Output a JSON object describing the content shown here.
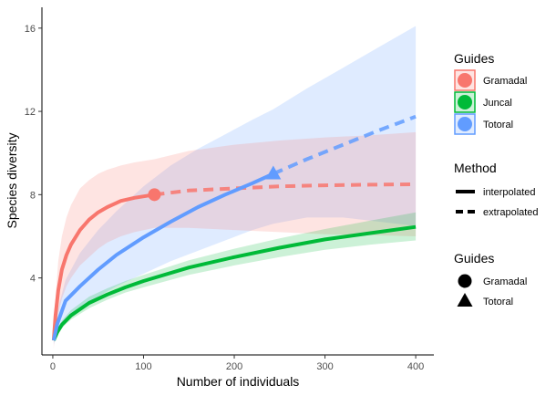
{
  "chart_data": {
    "type": "line",
    "xlabel": "Number of individuals",
    "ylabel": "Species diversity",
    "xlim": [
      -12,
      420
    ],
    "ylim": [
      0.3,
      17
    ],
    "x_ticks": [
      0,
      100,
      200,
      300,
      400
    ],
    "y_ticks": [
      4,
      8,
      12,
      16
    ],
    "grid": false,
    "legend_placement": "right",
    "series": [
      {
        "name": "Gramadal",
        "color": "#F8766D",
        "observed_point": [
          112,
          8.0
        ],
        "interpolated": {
          "x": [
            1,
            3,
            6,
            10,
            15,
            20,
            30,
            40,
            50,
            60,
            75,
            90,
            112
          ],
          "y": [
            1.0,
            2.2,
            3.4,
            4.4,
            5.1,
            5.6,
            6.3,
            6.8,
            7.15,
            7.4,
            7.7,
            7.85,
            8.0
          ]
        },
        "extrapolated": {
          "x": [
            112,
            150,
            200,
            250,
            300,
            350,
            400
          ],
          "y": [
            8.0,
            8.2,
            8.3,
            8.4,
            8.45,
            8.48,
            8.5
          ]
        },
        "ci_upper": [
          2.0,
          3.0,
          4.8,
          6.0,
          6.9,
          7.5,
          8.3,
          8.7,
          9.0,
          9.2,
          9.4,
          9.55,
          9.7,
          10.1,
          10.4,
          10.6,
          10.75,
          10.85,
          11.0
        ],
        "ci_lower": [
          0.6,
          1.5,
          2.3,
          3.0,
          3.6,
          4.0,
          4.6,
          5.0,
          5.4,
          5.7,
          6.0,
          6.2,
          6.4,
          6.4,
          6.3,
          6.2,
          6.1,
          6.05,
          6.0
        ],
        "ci_x": [
          1,
          3,
          6,
          10,
          15,
          20,
          30,
          40,
          50,
          60,
          75,
          90,
          112,
          150,
          200,
          250,
          300,
          350,
          400
        ]
      },
      {
        "name": "Juncal",
        "color": "#00BA38",
        "interpolated": {
          "x": [
            1,
            5,
            10,
            20,
            40,
            60,
            80,
            100,
            150,
            200,
            250,
            300,
            350,
            400
          ],
          "y": [
            1.0,
            1.4,
            1.75,
            2.2,
            2.8,
            3.2,
            3.55,
            3.85,
            4.5,
            5.0,
            5.45,
            5.85,
            6.15,
            6.45
          ]
        },
        "extrapolated": {
          "x": [],
          "y": []
        },
        "ci_upper": [
          1.1,
          1.55,
          1.95,
          2.45,
          3.1,
          3.5,
          3.85,
          4.15,
          4.85,
          5.4,
          5.9,
          6.35,
          6.75,
          7.15
        ],
        "ci_lower": [
          0.95,
          1.3,
          1.6,
          2.0,
          2.55,
          2.95,
          3.3,
          3.55,
          4.15,
          4.6,
          5.0,
          5.35,
          5.6,
          5.8
        ],
        "ci_x": [
          1,
          5,
          10,
          20,
          40,
          60,
          80,
          100,
          150,
          200,
          250,
          300,
          350,
          400
        ]
      },
      {
        "name": "Totoral",
        "color": "#619CFF",
        "observed_point": [
          243,
          9.0
        ],
        "interpolated": {
          "x": [
            1,
            5,
            14,
            30,
            50,
            70,
            100,
            130,
            160,
            190,
            220,
            243
          ],
          "y": [
            1.0,
            1.8,
            2.9,
            3.6,
            4.4,
            5.1,
            5.95,
            6.7,
            7.4,
            8.0,
            8.55,
            9.0
          ]
        },
        "extrapolated": {
          "x": [
            243,
            280,
            320,
            360,
            400
          ],
          "y": [
            9.0,
            9.7,
            10.4,
            11.1,
            11.75
          ]
        },
        "ci_upper": [
          1.3,
          2.4,
          3.9,
          5.2,
          6.3,
          7.2,
          8.4,
          9.4,
          10.2,
          10.9,
          11.6,
          12.1,
          13.1,
          14.1,
          15.1,
          16.1
        ],
        "ci_lower": [
          0.8,
          1.3,
          2.0,
          2.5,
          3.1,
          3.6,
          4.2,
          4.8,
          5.3,
          5.8,
          6.3,
          6.6,
          6.9,
          6.9,
          6.7,
          6.5
        ],
        "ci_x": [
          1,
          5,
          14,
          30,
          50,
          70,
          100,
          130,
          160,
          190,
          220,
          243,
          280,
          320,
          360,
          400
        ]
      }
    ],
    "legend": {
      "guides_title": "Guides",
      "guides_items": [
        "Gramadal",
        "Juncal",
        "Totoral"
      ],
      "method_title": "Method",
      "method_items": [
        "interpolated",
        "extrapolated"
      ],
      "shape_title": "Guides",
      "shape_items": [
        "Gramadal",
        "Totoral"
      ]
    }
  }
}
